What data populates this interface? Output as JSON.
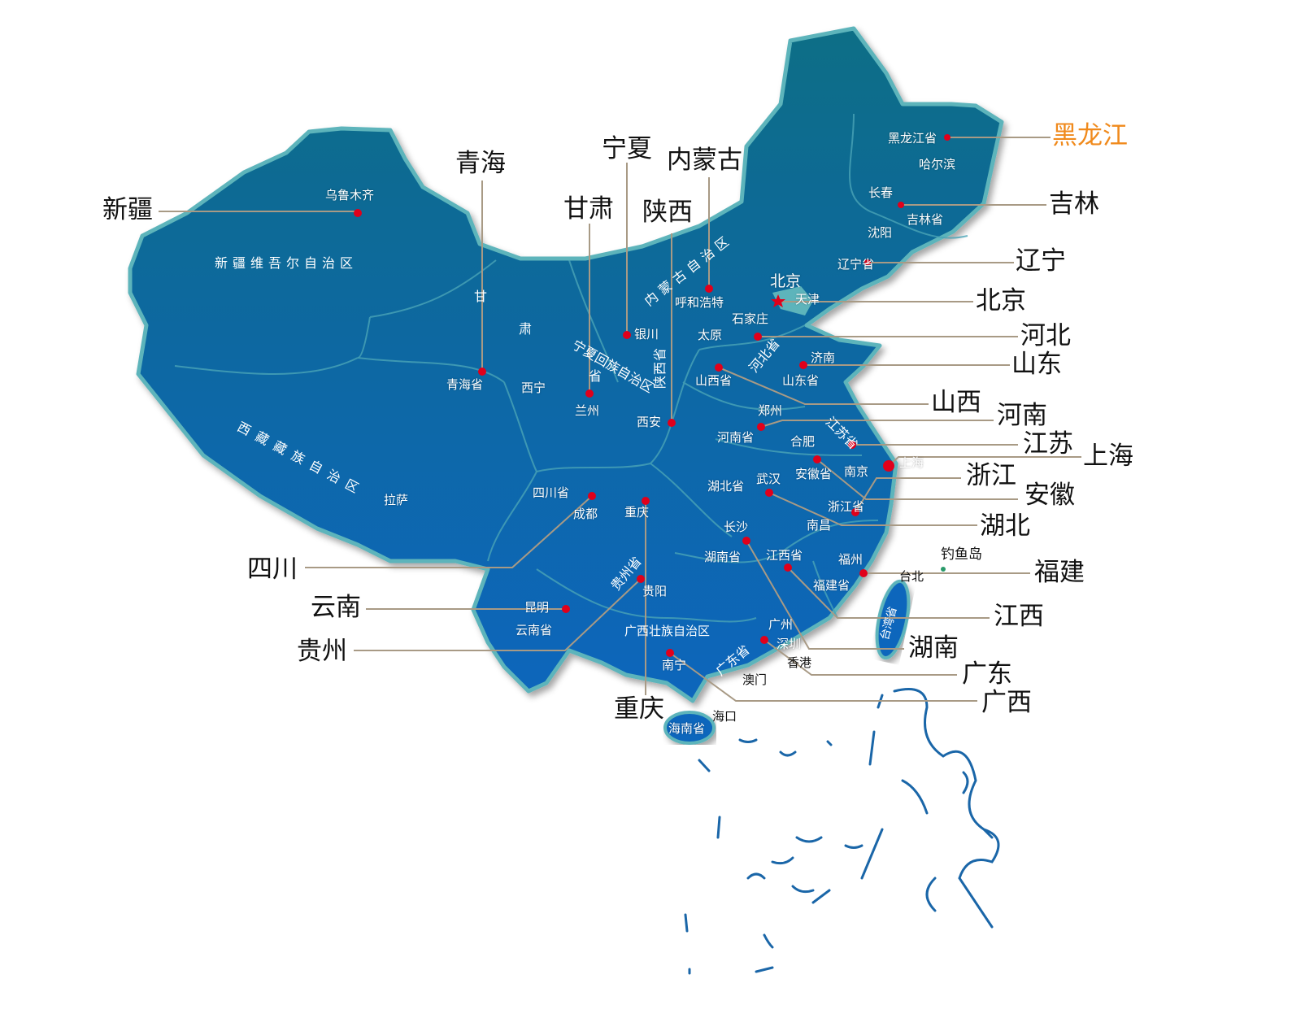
{
  "colors": {
    "map_top": "#0b6e8a",
    "map_bottom": "#0767b8",
    "border": "#5db4bb",
    "dot": "#e0001b",
    "leader": "#a89a85",
    "highlight": "#f08a1c"
  },
  "callouts": {
    "xinjiang": "新疆",
    "qinghai": "青海",
    "ningxia": "宁夏",
    "neimenggu": "内蒙古",
    "gansu": "甘肃",
    "shaanxi": "陕西",
    "heilongjiang": "黑龙江",
    "jilin": "吉林",
    "liaoning": "辽宁",
    "beijing": "北京",
    "hebei": "河北",
    "shandong": "山东",
    "shanxi": "山西",
    "henan": "河南",
    "jiangsu": "江苏",
    "shanghai": "上海",
    "zhejiang": "浙江",
    "anhui": "安徽",
    "hubei": "湖北",
    "sichuan": "四川",
    "fujian": "福建",
    "yunnan": "云南",
    "jiangxi": "江西",
    "guizhou": "贵州",
    "hunan": "湖南",
    "guangdong": "广东",
    "guangxi": "广西",
    "chongqing": "重庆"
  },
  "regions": {
    "xinjiang": "新疆维吾尔自治区",
    "gansu_1": "甘",
    "gansu_2": "肃",
    "gansu_3": "省",
    "neimenggu": "内蒙古自治区",
    "ningxia": "宁夏回族自治区",
    "shaanxi": "陕西省",
    "xizang": "西藏藏族自治区",
    "hebei": "河北省",
    "jiangsu": "江苏省",
    "guizhou": "贵州省",
    "guangdong": "广东省",
    "taiwan": "台湾省",
    "guangxi": "广西壮族自治区"
  },
  "cities": {
    "urumqi": "乌鲁木齐",
    "heilongjiang": "黑龙江省",
    "harbin": "哈尔滨",
    "changchun": "长春",
    "jilin": "吉林省",
    "shenyang": "沈阳",
    "liaoning": "辽宁省",
    "beijing": "北京",
    "tianjin": "天津",
    "hohhot": "呼和浩特",
    "shijiazhuang": "石家庄",
    "taiyuan": "太原",
    "jinan": "济南",
    "shandong": "山东省",
    "shanxi": "山西省",
    "yinchuan": "银川",
    "qinghai": "青海省",
    "xining": "西宁",
    "lanzhou": "兰州",
    "xian": "西安",
    "zhengzhou": "郑州",
    "henan": "河南省",
    "hefei": "合肥",
    "anhui": "安徽省",
    "nanjing": "南京",
    "shanghai": "上海",
    "lhasa": "拉萨",
    "sichuan": "四川省",
    "chengdu": "成都",
    "chongqing": "重庆",
    "hubei": "湖北省",
    "wuhan": "武汉",
    "zhejiang": "浙江省",
    "nanchang": "南昌",
    "changsha": "长沙",
    "hunan": "湖南省",
    "jiangxi": "江西省",
    "fuzhou": "福州",
    "fujian": "福建省",
    "taipei": "台北",
    "diaoyu": "钓鱼岛",
    "guiyang": "贵阳",
    "kunming": "昆明",
    "yunnan": "云南省",
    "guangzhou": "广州",
    "shenzhen": "深圳",
    "hongkong": "香港",
    "macau": "澳门",
    "nanning": "南宁",
    "haikou": "海口",
    "hainan": "海南省"
  }
}
